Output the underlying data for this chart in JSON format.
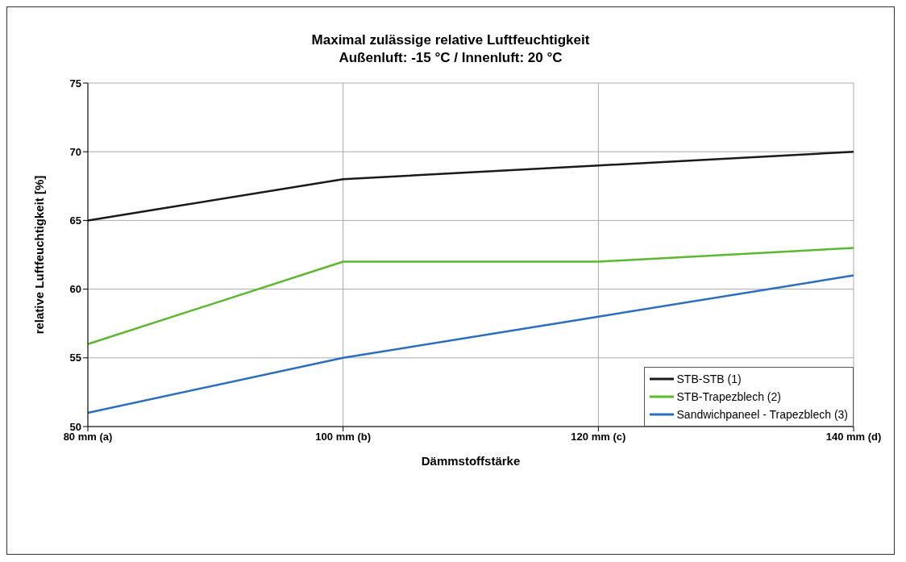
{
  "chart_data": {
    "type": "line",
    "title": "Maximal zulässige relative Luftfeuchtigkeit",
    "subtitle": "Außenluft: -15 °C / Innenluft: 20 °C",
    "xlabel": "Dämmstoffstärke",
    "ylabel": "relative Luftfeuchtigkeit [%]",
    "categories": [
      "80 mm (a)",
      "100 mm (b)",
      "120 mm (c)",
      "140 mm (d)"
    ],
    "series": [
      {
        "name": "STB-STB (1)",
        "color": "#1a1a1a",
        "values": [
          65,
          68,
          69,
          70
        ]
      },
      {
        "name": "STB-Trapezblech (2)",
        "color": "#5cb82e",
        "values": [
          56,
          62,
          62,
          63
        ]
      },
      {
        "name": "Sandwichpaneel - Trapezblech (3)",
        "color": "#2a6ebd",
        "values": [
          51,
          55,
          58,
          61
        ]
      }
    ],
    "ylim": [
      50,
      75
    ],
    "yticks": [
      50,
      55,
      60,
      65,
      70,
      75
    ],
    "grid": true,
    "legend": "right",
    "marker": "none",
    "line_style": "solid"
  }
}
